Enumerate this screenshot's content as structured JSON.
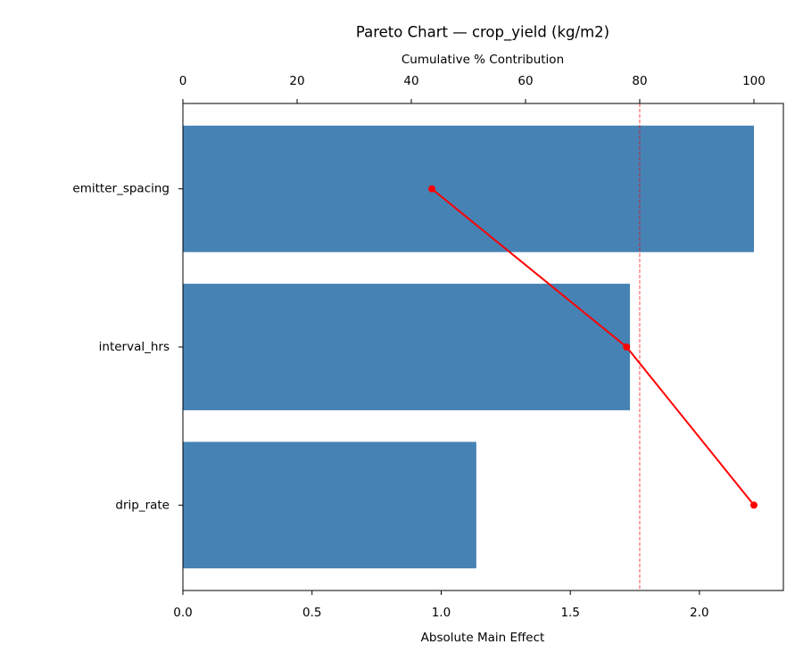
{
  "chart_data": {
    "type": "bar",
    "orientation": "horizontal",
    "title": "Pareto Chart — crop_yield (kg/m2)",
    "xlabel": "Absolute Main Effect",
    "x2label": "Cumulative % Contribution",
    "categories": [
      "emitter_spacing",
      "interval_hrs",
      "drip_rate"
    ],
    "values": [
      2.211,
      1.731,
      1.136
    ],
    "color": "#4682b4",
    "xlim": [
      0,
      2.325
    ],
    "xticks": [
      {
        "value": 0,
        "label": "0.0"
      },
      0.5,
      {
        "value": 1,
        "label": "1.0"
      },
      1.5,
      {
        "value": 2,
        "label": "2.0"
      }
    ],
    "cumulative": {
      "values": [
        43.6,
        77.7,
        100
      ],
      "color": "#ff0000",
      "axis": "x2"
    },
    "threshold": {
      "value": 80,
      "color": "#ff0000"
    },
    "x2lim": [
      0,
      105.16
    ],
    "x2ticks": [
      0,
      20,
      40,
      60,
      80,
      100
    ]
  }
}
